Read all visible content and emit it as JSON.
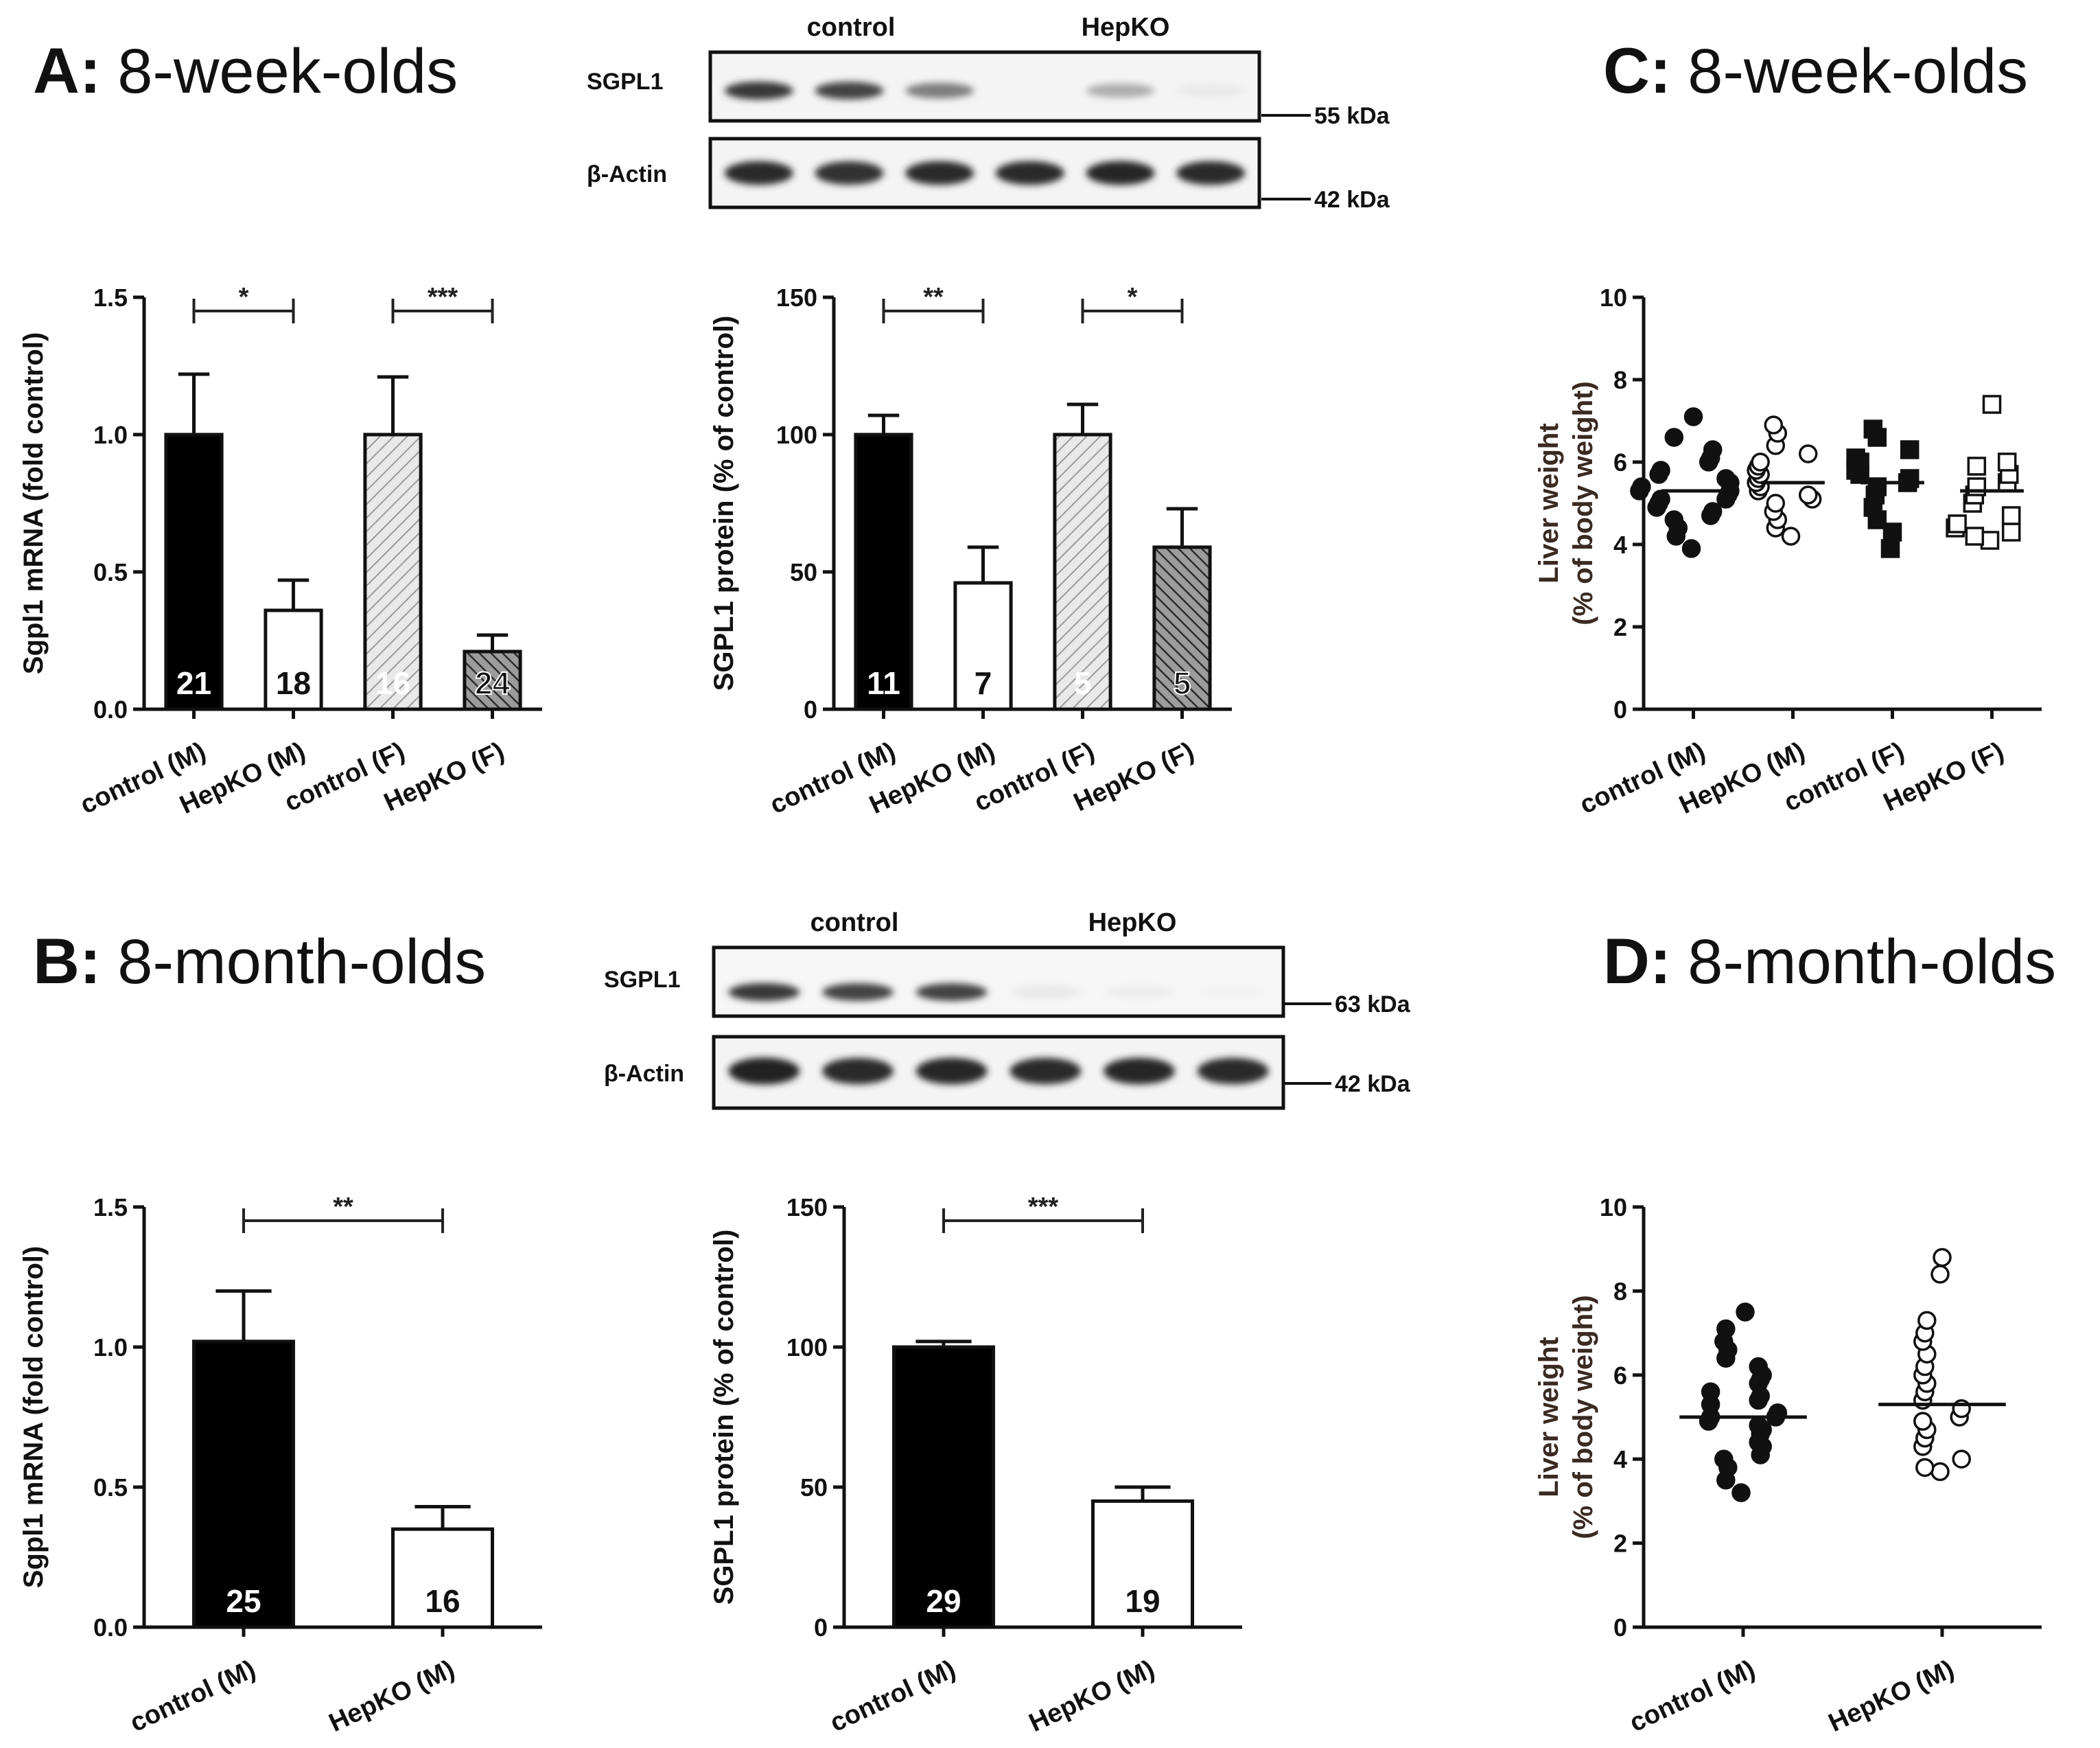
{
  "titles": {
    "A": {
      "letter": "A:",
      "text": "8-week-olds"
    },
    "B": {
      "letter": "B:",
      "text": "8-month-olds"
    },
    "C": {
      "letter": "C:",
      "text": "8-week-olds"
    },
    "D": {
      "letter": "D:",
      "text": "8-month-olds"
    }
  },
  "blots": {
    "A": {
      "group_left": "control",
      "group_right": "HepKO",
      "row1": "SGPL1",
      "row2": "β-Actin",
      "kda1": "55 kDa",
      "kda2": "42 kDa",
      "band_intensity_row1": [
        0.85,
        0.8,
        0.55,
        0.0,
        0.35,
        0.1
      ],
      "band_intensity_row2": [
        0.9,
        0.88,
        0.9,
        0.9,
        0.92,
        0.9
      ]
    },
    "B": {
      "group_left": "control",
      "group_right": "HepKO",
      "row1": "SGPL1",
      "row2": "β-Actin",
      "kda1": "63 kDa",
      "kda2": "42 kDa",
      "band_intensity_row1": [
        0.85,
        0.8,
        0.8,
        0.1,
        0.08,
        0.05
      ],
      "band_intensity_row2": [
        0.95,
        0.9,
        0.92,
        0.9,
        0.92,
        0.9
      ]
    }
  },
  "chart_data": [
    {
      "id": "A-mrna",
      "type": "bar",
      "ylabel": "Sgpl1 mRNA (fold control)",
      "ylim": [
        0,
        1.5
      ],
      "yticks": [
        "0.0",
        "0.5",
        "1.0",
        "1.5"
      ],
      "categories": [
        "control (M)",
        "HepKO (M)",
        "control (F)",
        "HepKO (F)"
      ],
      "values": [
        1.0,
        0.36,
        1.0,
        0.21
      ],
      "errors": [
        0.22,
        0.11,
        0.21,
        0.06
      ],
      "n": [
        "21",
        "18",
        "16",
        "24"
      ],
      "styles": [
        "black",
        "white",
        "hatch-light",
        "hatch-dark"
      ],
      "significance": [
        {
          "from": 0,
          "to": 1,
          "label": "*"
        },
        {
          "from": 2,
          "to": 3,
          "label": "***"
        }
      ]
    },
    {
      "id": "A-protein",
      "type": "bar",
      "ylabel": "SGPL1 protein (% of control)",
      "ylim": [
        0,
        150
      ],
      "yticks": [
        "0",
        "50",
        "100",
        "150"
      ],
      "categories": [
        "control (M)",
        "HepKO (M)",
        "control (F)",
        "HepKO (F)"
      ],
      "values": [
        100,
        46,
        100,
        59
      ],
      "errors": [
        7,
        13,
        11,
        14
      ],
      "n": [
        "11",
        "7",
        "5",
        "5"
      ],
      "styles": [
        "black",
        "white",
        "hatch-light",
        "hatch-dark"
      ],
      "significance": [
        {
          "from": 0,
          "to": 1,
          "label": "**"
        },
        {
          "from": 2,
          "to": 3,
          "label": "*"
        }
      ]
    },
    {
      "id": "C-liver",
      "type": "scatter",
      "ylabel_line1": "Liver weight",
      "ylabel_line2": "(% of body weight)",
      "ylim": [
        0,
        10
      ],
      "yticks": [
        "0",
        "2",
        "4",
        "6",
        "8",
        "10"
      ],
      "categories": [
        "control (M)",
        "HepKO (M)",
        "control (F)",
        "HepKO (F)"
      ],
      "means": [
        5.3,
        5.5,
        5.5,
        5.3
      ],
      "markers": [
        "filled-circle",
        "open-circle",
        "filled-square",
        "open-square"
      ],
      "points": [
        [
          3.9,
          4.2,
          4.4,
          4.6,
          4.7,
          4.8,
          4.9,
          5.0,
          5.1,
          5.1,
          5.2,
          5.3,
          5.3,
          5.4,
          5.5,
          5.6,
          5.7,
          5.8,
          6.0,
          6.1,
          6.3,
          6.6,
          7.1
        ],
        [
          4.2,
          4.4,
          4.6,
          4.8,
          5.0,
          5.1,
          5.2,
          5.3,
          5.4,
          5.5,
          5.6,
          5.7,
          5.8,
          5.9,
          6.0,
          6.2,
          6.4,
          6.7,
          6.9
        ],
        [
          3.9,
          4.3,
          4.6,
          4.9,
          5.2,
          5.4,
          5.5,
          5.6,
          5.7,
          5.8,
          5.9,
          6.0,
          6.1,
          6.3,
          6.6,
          6.8
        ],
        [
          4.1,
          4.2,
          4.3,
          4.4,
          4.5,
          4.7,
          5.0,
          5.2,
          5.4,
          5.5,
          5.7,
          5.9,
          6.0,
          7.4
        ]
      ]
    },
    {
      "id": "B-mrna",
      "type": "bar",
      "ylabel": "Sgpl1 mRNA (fold control)",
      "ylim": [
        0,
        1.5
      ],
      "yticks": [
        "0.0",
        "0.5",
        "1.0",
        "1.5"
      ],
      "categories": [
        "control (M)",
        "HepKO (M)"
      ],
      "values": [
        1.02,
        0.35
      ],
      "errors": [
        0.18,
        0.08
      ],
      "n": [
        "25",
        "16"
      ],
      "styles": [
        "black",
        "white"
      ],
      "significance": [
        {
          "from": 0,
          "to": 1,
          "label": "**"
        }
      ]
    },
    {
      "id": "B-protein",
      "type": "bar",
      "ylabel": "SGPL1 protein (% of control)",
      "ylim": [
        0,
        150
      ],
      "yticks": [
        "0",
        "50",
        "100",
        "150"
      ],
      "categories": [
        "control (M)",
        "HepKO (M)"
      ],
      "values": [
        100,
        45
      ],
      "errors": [
        2,
        5
      ],
      "n": [
        "29",
        "19"
      ],
      "styles": [
        "black",
        "white"
      ],
      "significance": [
        {
          "from": 0,
          "to": 1,
          "label": "***"
        }
      ]
    },
    {
      "id": "D-liver",
      "type": "scatter",
      "ylabel_line1": "Liver weight",
      "ylabel_line2": "(% of body weight)",
      "ylim": [
        0,
        10
      ],
      "yticks": [
        "0",
        "2",
        "4",
        "6",
        "8",
        "10"
      ],
      "categories": [
        "control (M)",
        "HepKO (M)"
      ],
      "means": [
        5.0,
        5.3
      ],
      "markers": [
        "filled-circle",
        "open-circle"
      ],
      "points": [
        [
          3.2,
          3.5,
          3.8,
          4.0,
          4.1,
          4.3,
          4.4,
          4.6,
          4.7,
          4.8,
          4.9,
          5.0,
          5.0,
          5.1,
          5.3,
          5.4,
          5.5,
          5.6,
          5.8,
          5.9,
          6.0,
          6.2,
          6.4,
          6.6,
          6.8,
          7.1,
          7.5
        ],
        [
          3.7,
          3.8,
          4.0,
          4.3,
          4.5,
          4.7,
          4.9,
          5.0,
          5.2,
          5.4,
          5.6,
          5.8,
          6.0,
          6.2,
          6.5,
          6.8,
          7.0,
          7.3,
          8.4,
          8.8
        ]
      ]
    }
  ]
}
